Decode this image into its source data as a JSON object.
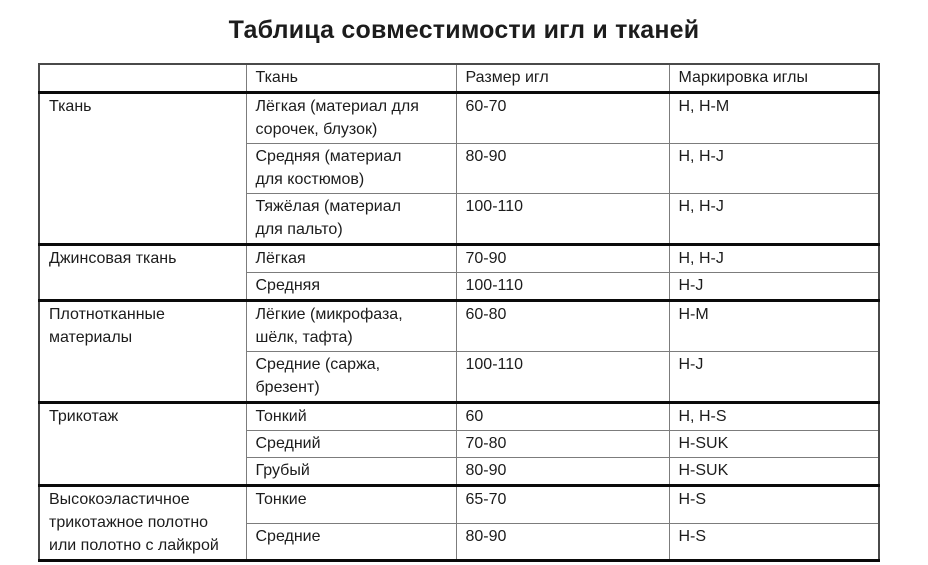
{
  "title": "Таблица совместимости игл и тканей",
  "table": {
    "headers": [
      "",
      "Ткань",
      "Размер игл",
      "Маркировка иглы"
    ],
    "sections": [
      {
        "category": "Ткань",
        "rows": [
          {
            "fabric": "Лёгкая (материал для\nсорочек, блузок)",
            "size": "60-70",
            "marking": "H, H-M"
          },
          {
            "fabric": "Средняя (материал\nдля костюмов)",
            "size": "80-90",
            "marking": "H, H-J"
          },
          {
            "fabric": "Тяжёлая (материал\nдля пальто)",
            "size": "100-110",
            "marking": "H, H-J"
          }
        ]
      },
      {
        "category": "Джинсовая ткань",
        "rows": [
          {
            "fabric": "Лёгкая",
            "size": "70-90",
            "marking": "H, H-J"
          },
          {
            "fabric": "Средняя",
            "size": "100-110",
            "marking": "H-J"
          }
        ]
      },
      {
        "category": "Плотнотканные\nматериалы",
        "rows": [
          {
            "fabric": "Лёгкие (микрофаза,\nшёлк, тафта)",
            "size": "60-80",
            "marking": "H-M"
          },
          {
            "fabric": "Средние (саржа,\nбрезент)",
            "size": "100-110",
            "marking": "H-J"
          }
        ]
      },
      {
        "category": "Трикотаж",
        "rows": [
          {
            "fabric": "Тонкий",
            "size": "60",
            "marking": "H, H-S"
          },
          {
            "fabric": "Средний",
            "size": "70-80",
            "marking": "H-SUK"
          },
          {
            "fabric": "Грубый",
            "size": "80-90",
            "marking": "H-SUK"
          }
        ]
      },
      {
        "category": "Высокоэластичное\nтрикотажное полотно\nили полотно с лайкрой",
        "rows": [
          {
            "fabric": "Тонкие",
            "size": "65-70",
            "marking": "H-S"
          },
          {
            "fabric": "Средние",
            "size": "80-90",
            "marking": "H-S"
          }
        ]
      }
    ]
  },
  "colors": {
    "background": "#ffffff",
    "text": "#1c1c1c",
    "border_thin": "#7c7c7c",
    "border_thick": "#0a0a0a"
  }
}
